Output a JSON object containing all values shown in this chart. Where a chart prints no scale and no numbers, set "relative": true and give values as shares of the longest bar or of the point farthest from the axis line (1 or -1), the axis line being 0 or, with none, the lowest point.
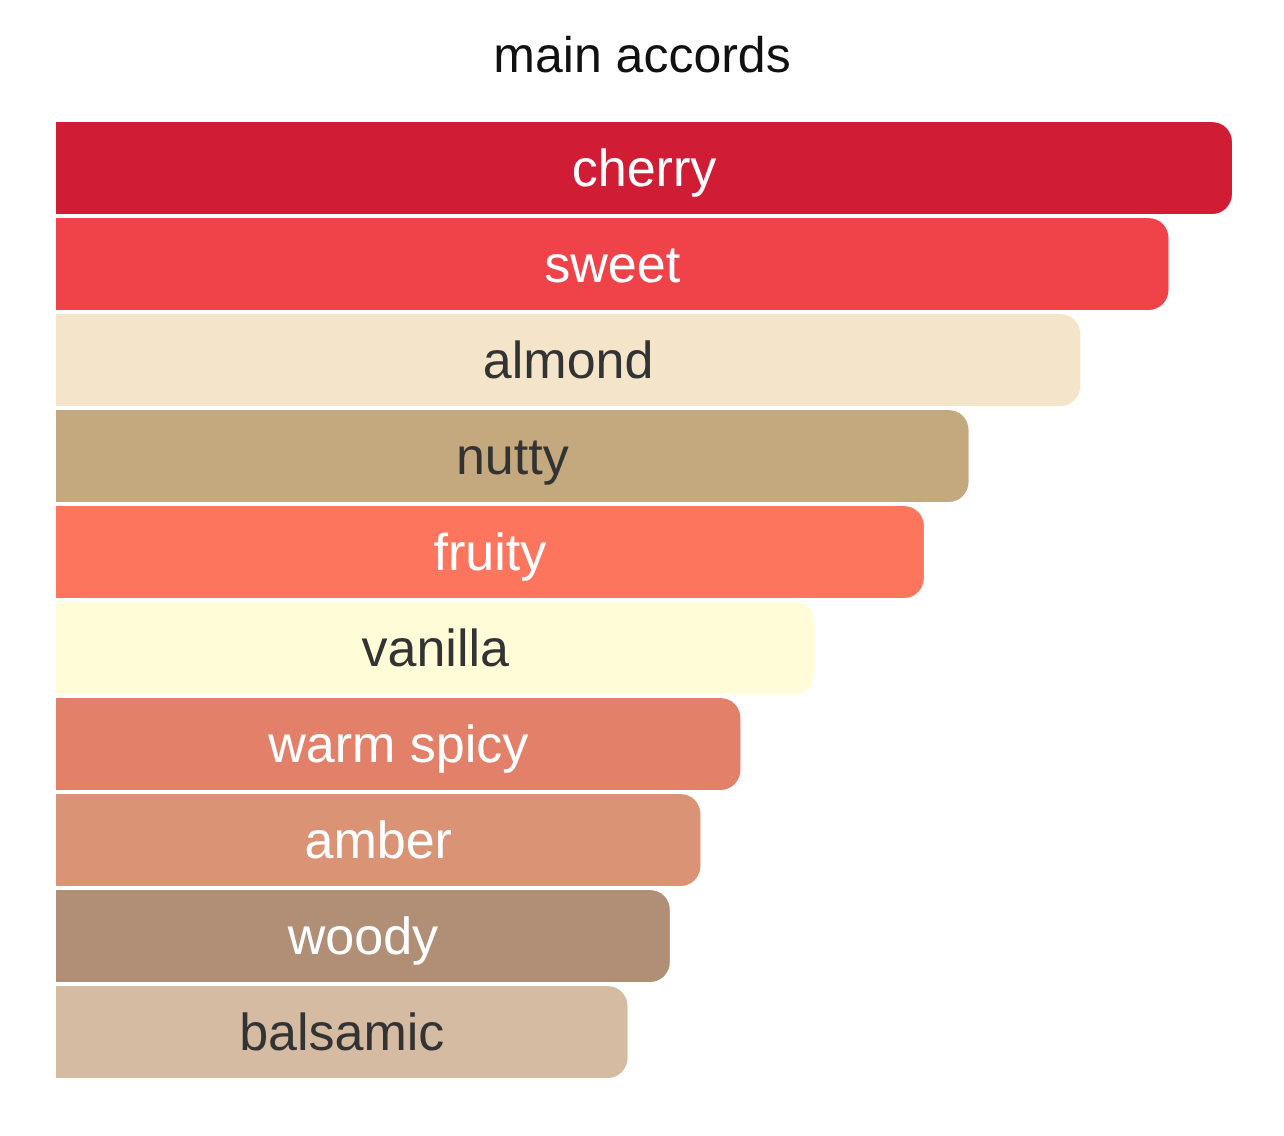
{
  "chart_data": {
    "type": "bar",
    "orientation": "horizontal",
    "relative": true,
    "title": "main accords",
    "categories": [
      "cherry",
      "sweet",
      "almond",
      "nutty",
      "fruity",
      "vanilla",
      "warm spicy",
      "amber",
      "woody",
      "balsamic"
    ],
    "values": [
      1,
      0.946,
      0.871,
      0.776,
      0.738,
      0.645,
      0.582,
      0.548,
      0.522,
      0.486
    ],
    "colors": [
      "#d01c34",
      "#f04349",
      "#f4e5ca",
      "#c4a97f",
      "#fe755d",
      "#fffcd7",
      "#e3806a",
      "#db9375",
      "#b18f76",
      "#d4bba2"
    ]
  }
}
